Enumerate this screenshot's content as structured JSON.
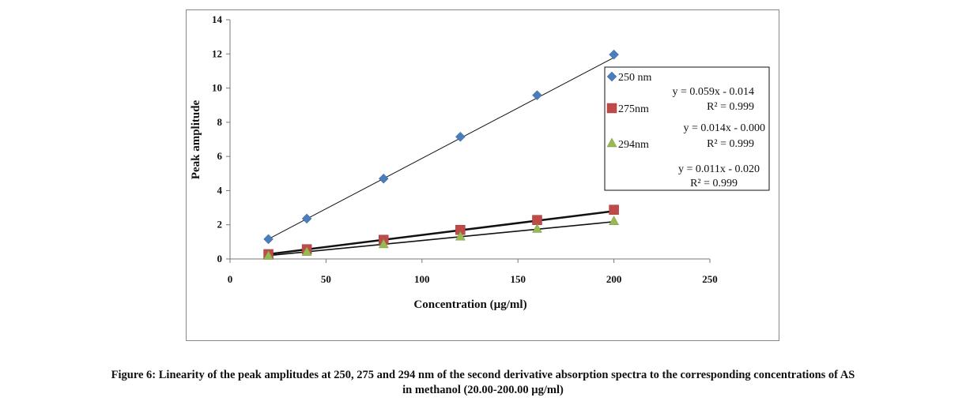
{
  "chart_data": {
    "type": "scatter",
    "xlabel": "Concentration (µg/ml)",
    "ylabel": "Peak amplitude",
    "xlim": [
      0,
      250
    ],
    "ylim": [
      0,
      14
    ],
    "xticks": [
      "0",
      "50",
      "100",
      "150",
      "200",
      "250"
    ],
    "yticks": [
      "0",
      "2",
      "4",
      "6",
      "8",
      "10",
      "12",
      "14"
    ],
    "grid": false,
    "legend_position": "right",
    "series": [
      {
        "name": "250 nm",
        "marker": "diamond",
        "color": "#4a7ebb",
        "x": [
          20,
          40,
          80,
          120,
          160,
          200
        ],
        "y": [
          1.16,
          2.36,
          4.7,
          7.15,
          9.58,
          11.96
        ],
        "trendline": {
          "slope": 0.059,
          "intercept": -0.014
        },
        "equation": "y = 0.059x - 0.014",
        "r2": "R² = 0.999"
      },
      {
        "name": "275nm",
        "marker": "square",
        "color": "#be4b48",
        "x": [
          20,
          40,
          80,
          120,
          160,
          200
        ],
        "y": [
          0.28,
          0.57,
          1.12,
          1.7,
          2.28,
          2.88
        ],
        "trendline": {
          "slope": 0.014,
          "intercept": 0.0
        },
        "equation": "y = 0.014x - 0.000",
        "r2": "R² = 0.999"
      },
      {
        "name": "294nm",
        "marker": "triangle",
        "color": "#98b954",
        "x": [
          20,
          40,
          80,
          120,
          160,
          200
        ],
        "y": [
          0.2,
          0.43,
          0.88,
          1.33,
          1.78,
          2.23
        ],
        "trendline": {
          "slope": 0.011,
          "intercept": -0.02
        },
        "equation": "y = 0.011x - 0.020",
        "r2": "R² = 0.999"
      }
    ]
  },
  "caption": {
    "line1": "Figure 6: Linearity of the peak amplitudes at 250, 275 and 294 nm of the second derivative absorption spectra to the corresponding concentrations of AS",
    "line2": "in methanol (20.00-200.00 µg/ml)"
  }
}
